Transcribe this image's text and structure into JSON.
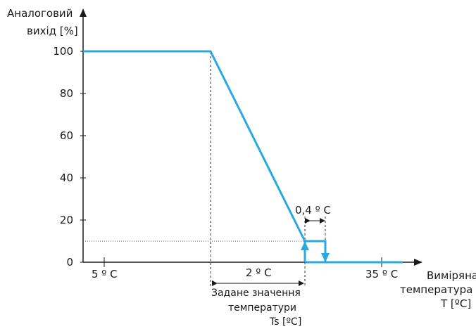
{
  "chart_data": {
    "type": "line",
    "y_axis": {
      "label_line1": "Аналоговий",
      "label_line2": "вихід [%]",
      "ticks": [
        "0",
        "20",
        "40",
        "60",
        "80",
        "100"
      ],
      "ylim": [
        0,
        100
      ]
    },
    "x_axis": {
      "label_line1": "Виміряна",
      "label_line2": "температура",
      "label_line3": "T [ºC]",
      "tick_left": "5 º C",
      "tick_right": "35 º C"
    },
    "annotations": {
      "band": "2 º C",
      "hysteresis": "0,4 º C",
      "setpoint_line1": "Задане значення",
      "setpoint_line2": "температури",
      "setpoint_line3": "Ts [ºC]"
    },
    "series_color": "#2aa8e0",
    "level_low_percent": 10
  }
}
